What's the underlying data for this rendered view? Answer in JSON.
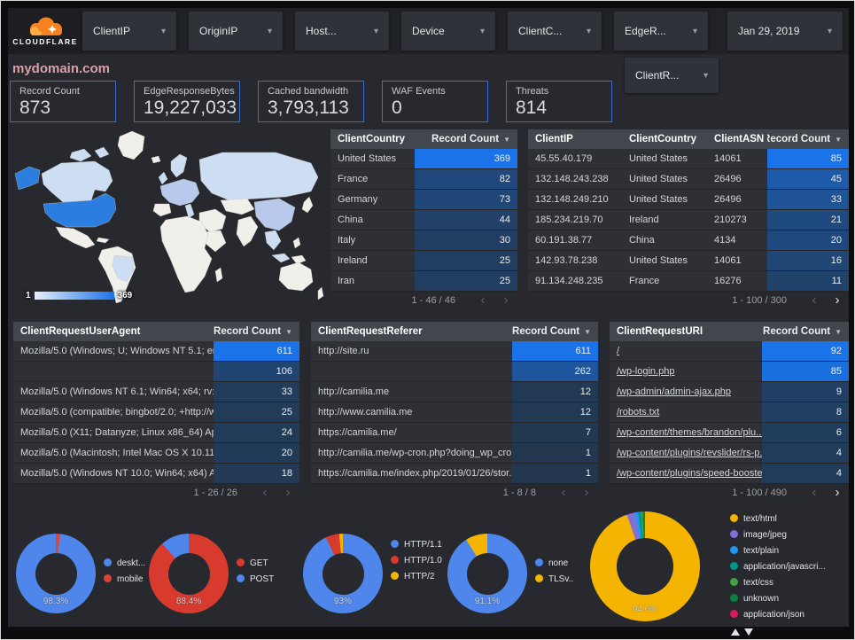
{
  "header": {
    "logo_text": "CLOUDFLARE",
    "filters": [
      "ClientIP",
      "OriginIP",
      "Host...",
      "Device",
      "ClientC...",
      "EdgeR..."
    ],
    "date_filter": "Jan 29, 2019",
    "filters_row2": [
      "ClientR..."
    ]
  },
  "page_title": "mydomain.com",
  "scorecards": [
    {
      "label": "Record Count",
      "value": "873"
    },
    {
      "label": "EdgeResponseBytes",
      "value": "19,227,033"
    },
    {
      "label": "Cached bandwidth",
      "value": "3,793,113"
    },
    {
      "label": "WAF Events",
      "value": "0"
    },
    {
      "label": "Threats",
      "value": "814"
    }
  ],
  "icons": {
    "chevron_down": "▾",
    "sort_desc": "▼",
    "page_prev": "‹",
    "page_next": "›"
  },
  "map": {
    "type": "choropleth",
    "metric": "Record Count by ClientCountry",
    "legend_min": "1",
    "legend_max": "369",
    "color_high": "#2b7de0",
    "color_low": "#cdddf2",
    "color_mid": "#b9c9ec",
    "color_none": "#f1efe9"
  },
  "tables": {
    "client_country": {
      "headers": [
        "ClientCountry",
        "Record Count"
      ],
      "heat_col": 1,
      "max": 369,
      "rows": [
        [
          "United States",
          369
        ],
        [
          "France",
          82
        ],
        [
          "Germany",
          73
        ],
        [
          "China",
          44
        ],
        [
          "Italy",
          30
        ],
        [
          "Ireland",
          25
        ],
        [
          "Iran",
          25
        ]
      ],
      "pagination": {
        "label": "1 - 46 / 46",
        "prev_enabled": false,
        "next_enabled": false
      }
    },
    "client_ip": {
      "headers": [
        "ClientIP",
        "ClientCountry",
        "ClientASN",
        "Record Count"
      ],
      "heat_col": 3,
      "max": 85,
      "rows": [
        [
          "45.55.40.179",
          "United States",
          "14061",
          85
        ],
        [
          "132.148.243.238",
          "United States",
          "26496",
          45
        ],
        [
          "132.148.249.210",
          "United States",
          "26496",
          33
        ],
        [
          "185.234.219.70",
          "Ireland",
          "210273",
          21
        ],
        [
          "60.191.38.77",
          "China",
          "4134",
          20
        ],
        [
          "142.93.78.238",
          "United States",
          "14061",
          16
        ],
        [
          "91.134.248.235",
          "France",
          "16276",
          11
        ]
      ],
      "pagination": {
        "label": "1 - 100 / 300",
        "prev_enabled": false,
        "next_enabled": true
      }
    },
    "user_agent": {
      "headers": [
        "ClientRequestUserAgent",
        "Record Count"
      ],
      "heat_col": 1,
      "max": 611,
      "rows": [
        [
          "Mozilla/5.0 (Windows; U; Windows NT 5.1; en-U...",
          611
        ],
        [
          "",
          106
        ],
        [
          "Mozilla/5.0 (Windows NT 6.1; Win64; x64; rv:64...",
          33
        ],
        [
          "Mozilla/5.0 (compatible; bingbot/2.0; +http://w...",
          25
        ],
        [
          "Mozilla/5.0 (X11; Datanyze; Linux x86_64) Appl...",
          24
        ],
        [
          "Mozilla/5.0 (Macintosh; Intel Mac OS X 10.11; r...",
          20
        ],
        [
          "Mozilla/5.0 (Windows NT 10.0; Win64; x64) App...",
          18
        ]
      ],
      "pagination": {
        "label": "1 - 26 / 26",
        "prev_enabled": false,
        "next_enabled": false
      }
    },
    "referer": {
      "headers": [
        "ClientRequestReferer",
        "Record Count"
      ],
      "heat_col": 1,
      "max": 611,
      "rows": [
        [
          "http://site.ru",
          611
        ],
        [
          "",
          262
        ],
        [
          "http://camilia.me",
          12
        ],
        [
          "http://www.camilia.me",
          12
        ],
        [
          "https://camilia.me/",
          7
        ],
        [
          "http://camilia.me/wp-cron.php?doing_wp_cron...",
          1
        ],
        [
          "https://camilia.me/index.php/2019/01/26/stor...",
          1
        ]
      ],
      "pagination": {
        "label": "1 - 8 / 8",
        "prev_enabled": false,
        "next_enabled": false
      }
    },
    "uri": {
      "headers": [
        "ClientRequestURI",
        "Record Count"
      ],
      "heat_col": 1,
      "max": 92,
      "link_col": 0,
      "rows": [
        [
          "/",
          92
        ],
        [
          "/wp-login.php",
          85
        ],
        [
          "/wp-admin/admin-ajax.php",
          9
        ],
        [
          "/robots.txt",
          8
        ],
        [
          "/wp-content/themes/brandon/plu...",
          6
        ],
        [
          "/wp-content/plugins/revslider/rs-p...",
          4
        ],
        [
          "/wp-content/plugins/speed-booste...",
          4
        ]
      ],
      "pagination": {
        "label": "1 - 100 / 490",
        "prev_enabled": false,
        "next_enabled": true
      }
    }
  },
  "chart_data": [
    {
      "type": "pie",
      "name": "client-device-type",
      "center_label": "98.3%",
      "size": 90,
      "rotate_deg": 6,
      "legend_position": "right",
      "slices": [
        {
          "label": "deskt...",
          "value": 98.3,
          "color": "#4e86ec"
        },
        {
          "label": "mobile",
          "value": 1.7,
          "color": "#dc4437"
        }
      ]
    },
    {
      "type": "pie",
      "name": "client-request-method",
      "center_label": "88.4%",
      "size": 90,
      "rotate_deg": 0,
      "legend_position": "right",
      "slices": [
        {
          "label": "GET",
          "value": 88.4,
          "color": "#d93a2e"
        },
        {
          "label": "POST",
          "value": 11.6,
          "color": "#4e86ec"
        }
      ]
    },
    {
      "type": "pie",
      "name": "client-request-protocol",
      "center_label": "93%",
      "size": 90,
      "rotate_deg": 0,
      "legend_position": "right",
      "slices": [
        {
          "label": "HTTP/1.1",
          "value": 93,
          "color": "#4e86ec"
        },
        {
          "label": "HTTP/1.0",
          "value": 5.5,
          "color": "#d93a2e"
        },
        {
          "label": "HTTP/2",
          "value": 1.5,
          "color": "#f4b400"
        }
      ]
    },
    {
      "type": "pie",
      "name": "client-ssl-protocol",
      "center_label": "91.1%",
      "size": 90,
      "rotate_deg": 0,
      "legend_position": "right",
      "slices": [
        {
          "label": "none",
          "value": 91.1,
          "color": "#4e86ec"
        },
        {
          "label": "TLSv..",
          "value": 8.9,
          "color": "#f4b400"
        }
      ]
    },
    {
      "type": "pie",
      "name": "edge-response-content-type",
      "center_label": "94.6%",
      "size": 124,
      "rotate_deg": 0,
      "legend_position": "right",
      "legend_pager": true,
      "slices": [
        {
          "label": "text/html",
          "value": 94.6,
          "color": "#f4b400"
        },
        {
          "label": "image/jpeg",
          "value": 2.4,
          "color": "#7e72d8"
        },
        {
          "label": "text/plain",
          "value": 1.0,
          "color": "#2196f3"
        },
        {
          "label": "application/javascri...",
          "value": 0.8,
          "color": "#009688"
        },
        {
          "label": "text/css",
          "value": 0.5,
          "color": "#43a047"
        },
        {
          "label": "unknown",
          "value": 0.4,
          "color": "#0b8043"
        },
        {
          "label": "application/json",
          "value": 0.3,
          "color": "#d81b60"
        }
      ]
    }
  ],
  "colors": {
    "heat_low": "#22364d",
    "heat_high": "#1a73e8",
    "accent_border": "#3d6fd2"
  }
}
